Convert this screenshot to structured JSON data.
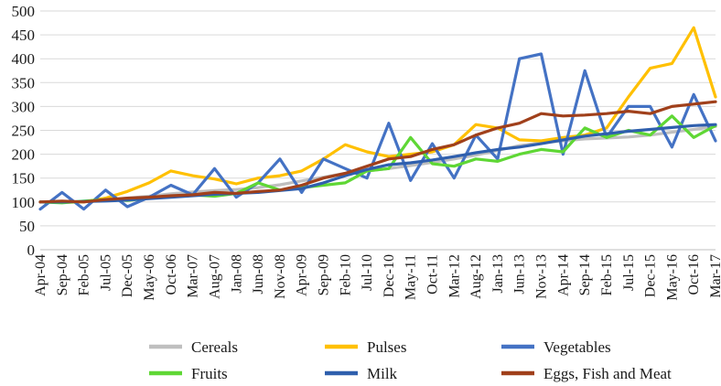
{
  "chart_data": {
    "type": "line",
    "title": "",
    "xlabel": "",
    "ylabel": "",
    "ylim": [
      0,
      500
    ],
    "yticks": [
      0,
      50,
      100,
      150,
      200,
      250,
      300,
      350,
      400,
      450,
      500
    ],
    "grid": true,
    "legend_position": "bottom",
    "x_tick_labels": [
      "Apr-04",
      "Sep-04",
      "Feb-05",
      "Jul-05",
      "Dec-05",
      "May-06",
      "Oct-06",
      "Mar-07",
      "Aug-07",
      "Jan-08",
      "Jun-08",
      "Nov-08",
      "Apr-09",
      "Sep-09",
      "Feb-10",
      "Jul-10",
      "Dec-10",
      "May-11",
      "Oct-11",
      "Mar-12",
      "Aug-12",
      "Jan-13",
      "Jun-13",
      "Nov-13",
      "Apr-14",
      "Sep-14",
      "Feb-15",
      "Jul-15",
      "Dec-15",
      "May-16",
      "Oct-16",
      "Mar-17"
    ],
    "x_range": [
      "Apr-04",
      "Mar-17"
    ],
    "series": [
      {
        "name": "Cereals",
        "color": "#bfbfbf",
        "points": [
          [
            "Apr-04",
            100
          ],
          [
            "Sep-04",
            100
          ],
          [
            "Feb-05",
            101
          ],
          [
            "Jul-05",
            104
          ],
          [
            "Dec-05",
            108
          ],
          [
            "May-06",
            112
          ],
          [
            "Oct-06",
            117
          ],
          [
            "Mar-07",
            121
          ],
          [
            "Aug-07",
            124
          ],
          [
            "Jan-08",
            126
          ],
          [
            "Jun-08",
            130
          ],
          [
            "Nov-08",
            136
          ],
          [
            "Apr-09",
            144
          ],
          [
            "Sep-09",
            152
          ],
          [
            "Feb-10",
            160
          ],
          [
            "Jul-10",
            165
          ],
          [
            "Dec-10",
            170
          ],
          [
            "May-11",
            176
          ],
          [
            "Oct-11",
            183
          ],
          [
            "Mar-12",
            190
          ],
          [
            "Aug-12",
            198
          ],
          [
            "Jan-13",
            208
          ],
          [
            "Jun-13",
            218
          ],
          [
            "Nov-13",
            224
          ],
          [
            "Apr-14",
            228
          ],
          [
            "Sep-14",
            232
          ],
          [
            "Feb-15",
            234
          ],
          [
            "Jul-15",
            236
          ],
          [
            "Dec-15",
            240
          ],
          [
            "May-16",
            246
          ],
          [
            "Oct-16",
            252
          ],
          [
            "Mar-17",
            258
          ]
        ]
      },
      {
        "name": "Pulses",
        "color": "#ffc000",
        "points": [
          [
            "Apr-04",
            100
          ],
          [
            "Sep-04",
            99
          ],
          [
            "Feb-05",
            100
          ],
          [
            "Jul-05",
            108
          ],
          [
            "Dec-05",
            122
          ],
          [
            "May-06",
            140
          ],
          [
            "Oct-06",
            165
          ],
          [
            "Mar-07",
            155
          ],
          [
            "Aug-07",
            148
          ],
          [
            "Jan-08",
            138
          ],
          [
            "Jun-08",
            150
          ],
          [
            "Nov-08",
            155
          ],
          [
            "Apr-09",
            165
          ],
          [
            "Sep-09",
            190
          ],
          [
            "Feb-10",
            220
          ],
          [
            "Jul-10",
            205
          ],
          [
            "Dec-10",
            195
          ],
          [
            "May-11",
            200
          ],
          [
            "Oct-11",
            205
          ],
          [
            "Mar-12",
            220
          ],
          [
            "Aug-12",
            262
          ],
          [
            "Jan-13",
            255
          ],
          [
            "Jun-13",
            230
          ],
          [
            "Nov-13",
            228
          ],
          [
            "Apr-14",
            235
          ],
          [
            "Sep-14",
            240
          ],
          [
            "Feb-15",
            255
          ],
          [
            "Jul-15",
            320
          ],
          [
            "Dec-15",
            380
          ],
          [
            "May-16",
            390
          ],
          [
            "Oct-16",
            465
          ],
          [
            "Mar-17",
            320
          ]
        ]
      },
      {
        "name": "Vegetables",
        "color": "#4472c4",
        "points": [
          [
            "Apr-04",
            85
          ],
          [
            "Sep-04",
            120
          ],
          [
            "Feb-05",
            85
          ],
          [
            "Jul-05",
            125
          ],
          [
            "Dec-05",
            90
          ],
          [
            "May-06",
            110
          ],
          [
            "Oct-06",
            135
          ],
          [
            "Mar-07",
            115
          ],
          [
            "Aug-07",
            170
          ],
          [
            "Jan-08",
            110
          ],
          [
            "Jun-08",
            140
          ],
          [
            "Nov-08",
            190
          ],
          [
            "Apr-09",
            120
          ],
          [
            "Sep-09",
            190
          ],
          [
            "Feb-10",
            170
          ],
          [
            "Jul-10",
            150
          ],
          [
            "Dec-10",
            265
          ],
          [
            "May-11",
            145
          ],
          [
            "Oct-11",
            222
          ],
          [
            "Mar-12",
            150
          ],
          [
            "Aug-12",
            240
          ],
          [
            "Jan-13",
            190
          ],
          [
            "Jun-13",
            400
          ],
          [
            "Nov-13",
            410
          ],
          [
            "Apr-14",
            200
          ],
          [
            "Sep-14",
            375
          ],
          [
            "Feb-15",
            235
          ],
          [
            "Jul-15",
            300
          ],
          [
            "Dec-15",
            300
          ],
          [
            "May-16",
            215
          ],
          [
            "Oct-16",
            325
          ],
          [
            "Mar-17",
            228
          ]
        ]
      },
      {
        "name": "Fruits",
        "color": "#5fd735",
        "points": [
          [
            "Apr-04",
            100
          ],
          [
            "Sep-04",
            98
          ],
          [
            "Feb-05",
            102
          ],
          [
            "Jul-05",
            105
          ],
          [
            "Dec-05",
            103
          ],
          [
            "May-06",
            108
          ],
          [
            "Oct-06",
            112
          ],
          [
            "Mar-07",
            115
          ],
          [
            "Aug-07",
            112
          ],
          [
            "Jan-08",
            118
          ],
          [
            "Jun-08",
            140
          ],
          [
            "Nov-08",
            125
          ],
          [
            "Apr-09",
            130
          ],
          [
            "Sep-09",
            135
          ],
          [
            "Feb-10",
            140
          ],
          [
            "Jul-10",
            165
          ],
          [
            "Dec-10",
            170
          ],
          [
            "May-11",
            235
          ],
          [
            "Oct-11",
            180
          ],
          [
            "Mar-12",
            175
          ],
          [
            "Aug-12",
            190
          ],
          [
            "Jan-13",
            185
          ],
          [
            "Jun-13",
            200
          ],
          [
            "Nov-13",
            210
          ],
          [
            "Apr-14",
            205
          ],
          [
            "Sep-14",
            255
          ],
          [
            "Feb-15",
            235
          ],
          [
            "Jul-15",
            250
          ],
          [
            "Dec-15",
            240
          ],
          [
            "May-16",
            280
          ],
          [
            "Oct-16",
            235
          ],
          [
            "Mar-17",
            260
          ]
        ]
      },
      {
        "name": "Milk",
        "color": "#2f5fad",
        "points": [
          [
            "Apr-04",
            100
          ],
          [
            "Sep-04",
            100
          ],
          [
            "Feb-05",
            101
          ],
          [
            "Jul-05",
            102
          ],
          [
            "Dec-05",
            104
          ],
          [
            "May-06",
            107
          ],
          [
            "Oct-06",
            110
          ],
          [
            "Mar-07",
            113
          ],
          [
            "Aug-07",
            116
          ],
          [
            "Jan-08",
            118
          ],
          [
            "Jun-08",
            120
          ],
          [
            "Nov-08",
            124
          ],
          [
            "Apr-09",
            128
          ],
          [
            "Sep-09",
            140
          ],
          [
            "Feb-10",
            155
          ],
          [
            "Jul-10",
            168
          ],
          [
            "Dec-10",
            178
          ],
          [
            "May-11",
            182
          ],
          [
            "Oct-11",
            188
          ],
          [
            "Mar-12",
            195
          ],
          [
            "Aug-12",
            203
          ],
          [
            "Jan-13",
            210
          ],
          [
            "Jun-13",
            215
          ],
          [
            "Nov-13",
            222
          ],
          [
            "Apr-14",
            230
          ],
          [
            "Sep-14",
            238
          ],
          [
            "Feb-15",
            243
          ],
          [
            "Jul-15",
            248
          ],
          [
            "Dec-15",
            252
          ],
          [
            "May-16",
            256
          ],
          [
            "Oct-16",
            260
          ],
          [
            "Mar-17",
            262
          ]
        ]
      },
      {
        "name": "Eggs, Fish and Meat",
        "color": "#a0401b",
        "points": [
          [
            "Apr-04",
            100
          ],
          [
            "Sep-04",
            102
          ],
          [
            "Feb-05",
            100
          ],
          [
            "Jul-05",
            105
          ],
          [
            "Dec-05",
            108
          ],
          [
            "May-06",
            110
          ],
          [
            "Oct-06",
            113
          ],
          [
            "Mar-07",
            115
          ],
          [
            "Aug-07",
            120
          ],
          [
            "Jan-08",
            118
          ],
          [
            "Jun-08",
            122
          ],
          [
            "Nov-08",
            125
          ],
          [
            "Apr-09",
            135
          ],
          [
            "Sep-09",
            150
          ],
          [
            "Feb-10",
            160
          ],
          [
            "Jul-10",
            175
          ],
          [
            "Dec-10",
            190
          ],
          [
            "May-11",
            195
          ],
          [
            "Oct-11",
            210
          ],
          [
            "Mar-12",
            220
          ],
          [
            "Aug-12",
            240
          ],
          [
            "Jan-13",
            255
          ],
          [
            "Jun-13",
            265
          ],
          [
            "Nov-13",
            285
          ],
          [
            "Apr-14",
            280
          ],
          [
            "Sep-14",
            282
          ],
          [
            "Feb-15",
            285
          ],
          [
            "Jul-15",
            290
          ],
          [
            "Dec-15",
            285
          ],
          [
            "May-16",
            300
          ],
          [
            "Oct-16",
            305
          ],
          [
            "Mar-17",
            310
          ]
        ]
      }
    ],
    "legend": {
      "rows": [
        [
          "Cereals",
          "Pulses",
          "Vegetables"
        ],
        [
          "Fruits",
          "Milk",
          "Eggs, Fish and Meat"
        ]
      ]
    }
  }
}
